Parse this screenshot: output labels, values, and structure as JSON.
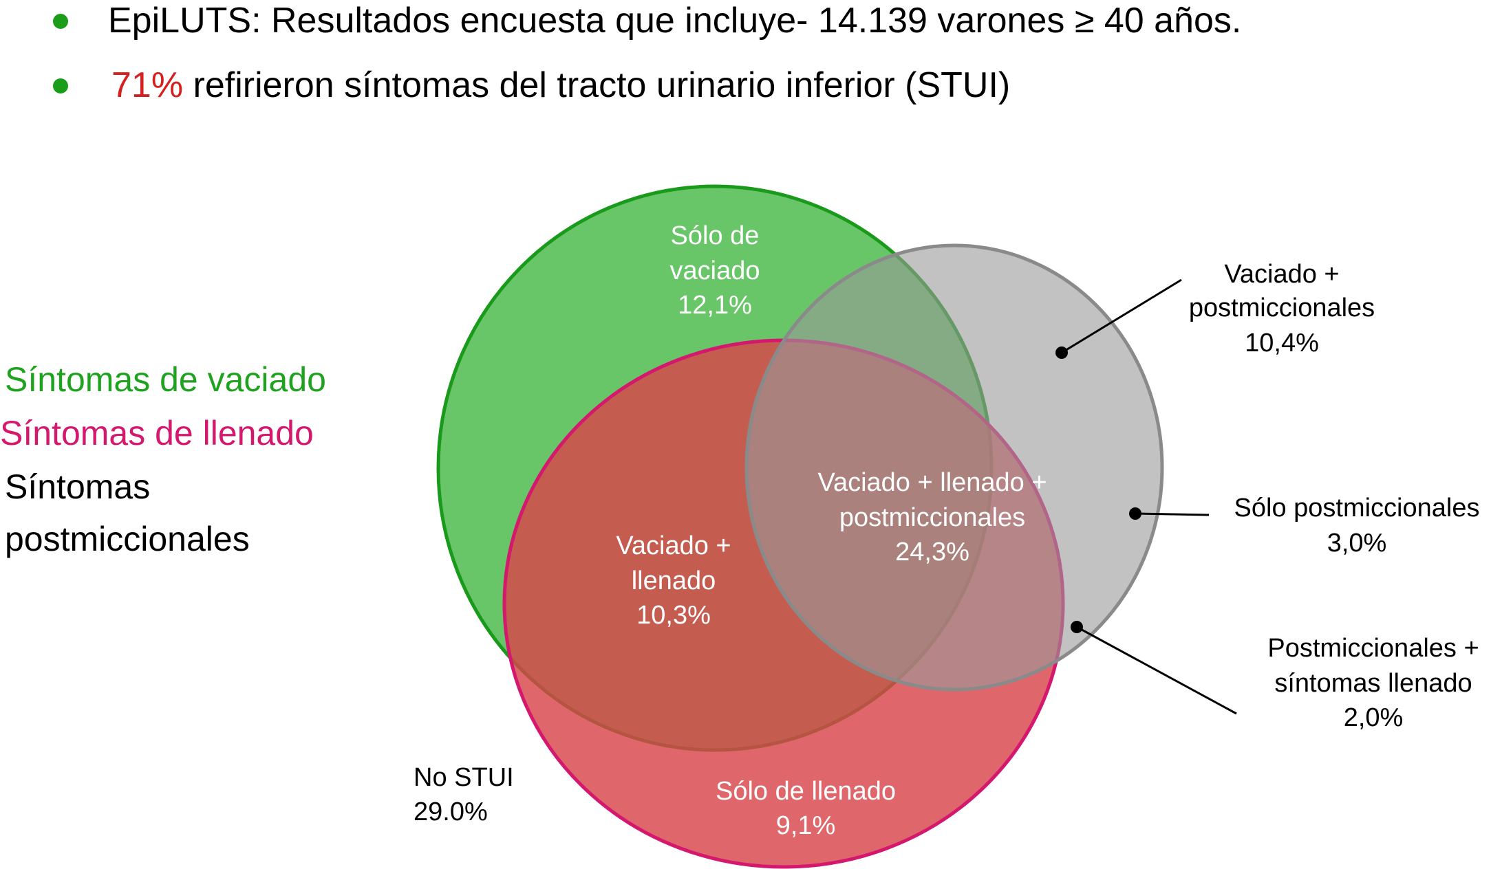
{
  "bullets": [
    {
      "text": "EpiLUTS: Resultados encuesta que incluye- 14.139 varones ≥ 40 años."
    },
    {
      "highlight": "71%",
      "text": " refirieron síntomas del tracto urinario inferior (STUI)"
    }
  ],
  "colors": {
    "bullet": "#1a9e1a",
    "highlight": "#d42020",
    "voiding": "#1fa21f",
    "storage": "#d4186e",
    "postmicturition": "#000000",
    "green_fill": "#3db53d",
    "red_fill": "#d8464b",
    "grey_fill": "#999999"
  },
  "legend": {
    "voiding": "Síntomas de vaciado",
    "storage": "Síntomas de llenado",
    "post_line1": "Síntomas",
    "post_line2": "postmiccionales"
  },
  "regions": {
    "solo_vaciado": [
      "Sólo de",
      "vaciado",
      "12,1%"
    ],
    "vaciado_llenado": [
      "Vaciado +",
      "llenado",
      "10,3%"
    ],
    "triple": [
      "Vaciado + llenado +",
      "postmiccionales",
      "24,3%"
    ],
    "solo_llenado": [
      "Sólo de llenado",
      "9,1%"
    ],
    "vaciado_post": [
      "Vaciado +",
      "postmiccionales",
      "10,4%"
    ],
    "solo_post": [
      "Sólo postmiccionales",
      "3,0%"
    ],
    "post_llenado": [
      "Postmiccionales +",
      "síntomas llenado",
      "2,0%"
    ],
    "no_stui": [
      "No STUI",
      "29.0%"
    ]
  }
}
